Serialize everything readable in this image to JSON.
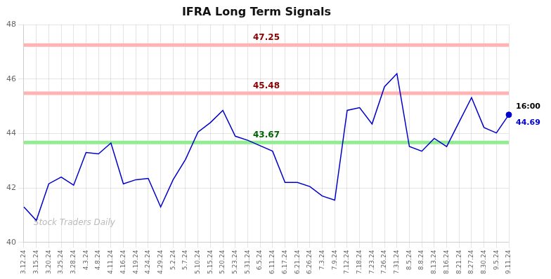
{
  "chart_data": {
    "type": "line",
    "title": "IFRA Long Term Signals",
    "categories": [
      "3.12.24",
      "3.15.24",
      "3.20.24",
      "3.25.24",
      "3.28.24",
      "4.3.24",
      "4.8.24",
      "4.11.24",
      "4.16.24",
      "4.19.24",
      "4.24.24",
      "4.29.24",
      "5.2.24",
      "5.7.24",
      "5.10.24",
      "5.15.24",
      "5.20.24",
      "5.23.24",
      "5.31.24",
      "6.5.24",
      "6.11.24",
      "6.17.24",
      "6.21.24",
      "6.26.24",
      "7.3.24",
      "7.9.24",
      "7.12.24",
      "7.18.24",
      "7.23.24",
      "7.26.24",
      "7.31.24",
      "8.5.24",
      "8.8.24",
      "8.13.24",
      "8.16.24",
      "8.21.24",
      "8.27.24",
      "8.30.24",
      "9.5.24",
      "9.11.24"
    ],
    "values": [
      41.3,
      40.8,
      42.15,
      42.4,
      42.1,
      43.3,
      43.25,
      43.65,
      42.15,
      42.3,
      42.35,
      41.3,
      42.3,
      43.05,
      44.05,
      44.4,
      44.85,
      43.9,
      43.75,
      43.55,
      43.35,
      42.2,
      42.2,
      42.05,
      41.7,
      41.55,
      44.85,
      44.95,
      44.35,
      45.72,
      46.2,
      43.52,
      43.35,
      43.82,
      43.52,
      44.42,
      45.32,
      44.22,
      44.02,
      44.69
    ],
    "color": "#0000cc",
    "ylim": [
      40,
      48
    ],
    "yticks": [
      40,
      42,
      44,
      46,
      48
    ],
    "grid": true,
    "hlines": [
      {
        "value": 47.25,
        "color": "#ffb3b3",
        "label_color": "#8b0000"
      },
      {
        "value": 45.48,
        "color": "#ffb3b3",
        "label_color": "#8b0000"
      },
      {
        "value": 43.67,
        "color": "#90ee90",
        "label_color": "#006400"
      }
    ],
    "marker_point": {
      "x": "9.11.24",
      "y": 44.69,
      "color": "#0000cc"
    },
    "annotations": [
      {
        "text": "16:00",
        "x": "9.11.24",
        "y": 44.69,
        "color": "#000000"
      },
      {
        "text": "44.69",
        "x": "9.11.24",
        "y": 44.69,
        "color": "#0000cc"
      }
    ],
    "watermark": "Stock Traders Daily"
  }
}
